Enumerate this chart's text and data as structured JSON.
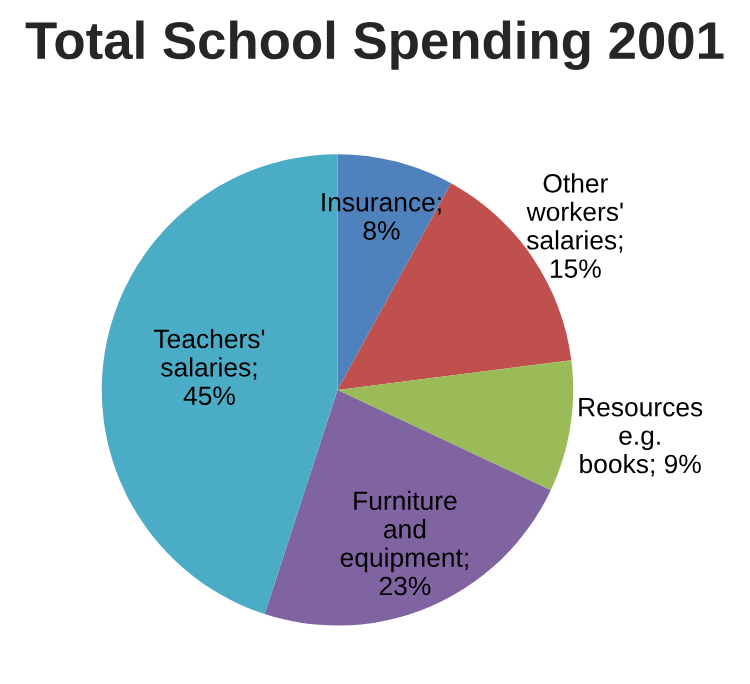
{
  "chart_data": {
    "type": "pie",
    "title": "Total School Spending 2001",
    "categories": [
      "Insurance; 8%",
      "Other workers' salaries; 15%",
      "Resources e.g. books; 9%",
      "Furniture and equipment; 23%",
      "Teachers' salaries; 45%"
    ],
    "values": [
      8,
      15,
      9,
      23,
      45
    ],
    "colors": [
      "#4f81bd",
      "#c0504d",
      "#9bbb59",
      "#8064a2",
      "#4bacc6"
    ]
  }
}
